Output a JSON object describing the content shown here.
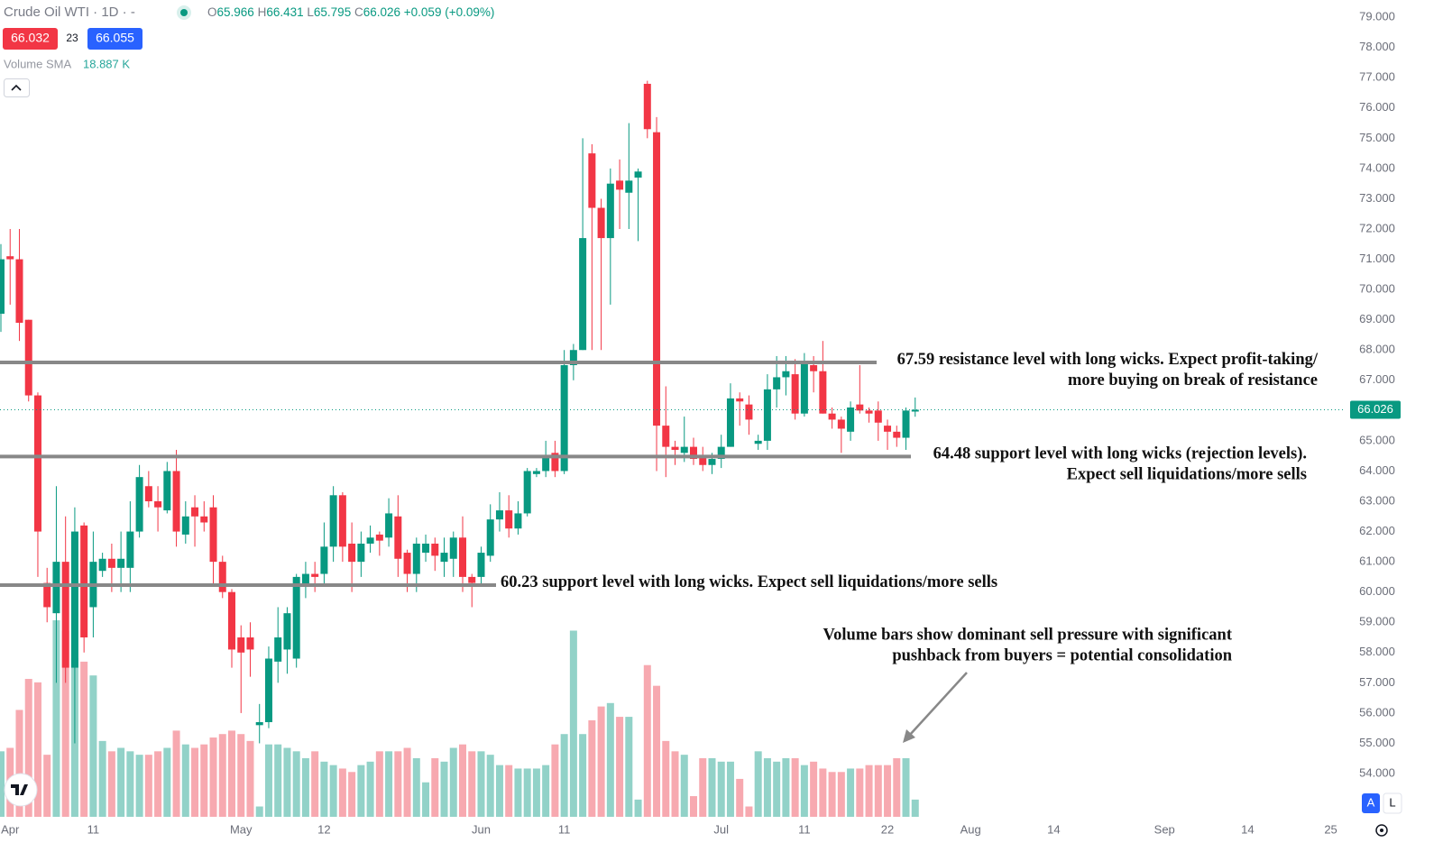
{
  "header": {
    "title": "Crude Oil WTI · 1D · -",
    "ohlc_letters": [
      "O",
      "H",
      "L",
      "C"
    ],
    "change": "+0.059 (+0.09%)",
    "bid": "66.032",
    "spread": "23",
    "ask": "66.055",
    "volume_sma_label": "Volume SMA",
    "volume_sma_value": "18.887 K",
    "buttons": [
      "A",
      "L"
    ]
  },
  "chart_data": {
    "type": "candlestick",
    "ylim": [
      52.57,
      79.57
    ],
    "yticks": [
      {
        "value": 54,
        "label": "54.000"
      },
      {
        "value": 55,
        "label": "55.000"
      },
      {
        "value": 56,
        "label": "56.000"
      },
      {
        "value": 57,
        "label": "57.000"
      },
      {
        "value": 58,
        "label": "58.000"
      },
      {
        "value": 59,
        "label": "59.000"
      },
      {
        "value": 60,
        "label": "60.000"
      },
      {
        "value": 61,
        "label": "61.000"
      },
      {
        "value": 62,
        "label": "62.000"
      },
      {
        "value": 63,
        "label": "63.000"
      },
      {
        "value": 64,
        "label": "64.000"
      },
      {
        "value": 65,
        "label": "65.000"
      },
      {
        "value": 66,
        "label": "66.000"
      },
      {
        "value": 67,
        "label": "67.000"
      },
      {
        "value": 68,
        "label": "68.000"
      },
      {
        "value": 69,
        "label": "69.000"
      },
      {
        "value": 70,
        "label": "70.000"
      },
      {
        "value": 71,
        "label": "71.000"
      },
      {
        "value": 72,
        "label": "72.000"
      },
      {
        "value": 73,
        "label": "73.000"
      },
      {
        "value": 74,
        "label": "74.000"
      },
      {
        "value": 75,
        "label": "75.000"
      },
      {
        "value": 76,
        "label": "76.000"
      },
      {
        "value": 77,
        "label": "77.000"
      },
      {
        "value": 78,
        "label": "78.000"
      },
      {
        "value": 79,
        "label": "79.000"
      }
    ],
    "xticks": [
      {
        "value": 1,
        "label": "Apr"
      },
      {
        "value": 10,
        "label": "11"
      },
      {
        "value": 26,
        "label": "May"
      },
      {
        "value": 35,
        "label": "12"
      },
      {
        "value": 52,
        "label": "Jun"
      },
      {
        "value": 61,
        "label": "11"
      },
      {
        "value": 78,
        "label": "Jul"
      },
      {
        "value": 87,
        "label": "11"
      },
      {
        "value": 96,
        "label": "22"
      },
      {
        "value": 105,
        "label": "Aug"
      },
      {
        "value": 114,
        "label": "14"
      },
      {
        "value": 126,
        "label": "Sep"
      },
      {
        "value": 135,
        "label": "14"
      },
      {
        "value": 144,
        "label": "25"
      }
    ],
    "up_color": "#089981",
    "down_color": "#f23645",
    "up_volume_color": "#92d2c8",
    "down_volume_color": "#f7a9b0",
    "candles": [
      [
        69.2,
        71.5,
        68.6,
        71.0
      ],
      [
        71.1,
        72.0,
        69.5,
        71.0
      ],
      [
        71.0,
        72.0,
        68.3,
        68.9
      ],
      [
        69.0,
        69.0,
        66.3,
        66.5
      ],
      [
        66.5,
        66.6,
        60.5,
        62.0
      ],
      [
        60.3,
        60.8,
        59.0,
        59.5
      ],
      [
        59.3,
        63.5,
        57.0,
        61.0
      ],
      [
        61.0,
        62.5,
        57.0,
        57.5
      ],
      [
        57.5,
        62.8,
        55.0,
        62.0
      ],
      [
        62.2,
        62.3,
        58.0,
        58.5
      ],
      [
        59.5,
        62.0,
        58.5,
        61.0
      ],
      [
        60.7,
        61.3,
        60.5,
        61.1
      ],
      [
        61.1,
        61.6,
        60.0,
        60.8
      ],
      [
        60.8,
        62.0,
        60.0,
        61.1
      ],
      [
        60.8,
        63.0,
        60.0,
        62.0
      ],
      [
        62.0,
        64.2,
        61.8,
        63.8
      ],
      [
        63.5,
        64.0,
        62.8,
        63.0
      ],
      [
        63.0,
        63.5,
        62.0,
        62.8
      ],
      [
        62.7,
        64.3,
        62.6,
        64.0
      ],
      [
        64.0,
        64.7,
        61.5,
        62.0
      ],
      [
        61.9,
        63.0,
        61.6,
        62.5
      ],
      [
        62.8,
        63.2,
        61.5,
        62.5
      ],
      [
        62.5,
        63.0,
        62.0,
        62.3
      ],
      [
        62.8,
        63.2,
        60.2,
        61.0
      ],
      [
        61.0,
        61.2,
        59.8,
        60.0
      ],
      [
        60.0,
        60.1,
        57.5,
        58.1
      ],
      [
        58.5,
        58.9,
        56.0,
        58.0
      ],
      [
        58.5,
        59.0,
        57.2,
        58.1
      ],
      [
        55.6,
        56.3,
        55.0,
        55.7
      ],
      [
        55.7,
        58.2,
        55.5,
        57.8
      ],
      [
        57.7,
        59.5,
        57.0,
        58.5
      ],
      [
        58.1,
        59.5,
        57.3,
        59.3
      ],
      [
        57.8,
        60.6,
        57.5,
        60.5
      ],
      [
        60.2,
        61.0,
        59.8,
        60.6
      ],
      [
        60.6,
        61.0,
        60.0,
        60.5
      ],
      [
        60.6,
        62.3,
        60.2,
        61.5
      ],
      [
        61.5,
        63.5,
        61.0,
        63.2
      ],
      [
        63.2,
        63.3,
        61.0,
        61.5
      ],
      [
        61.6,
        62.3,
        60.0,
        61.0
      ],
      [
        61.0,
        62.0,
        60.5,
        61.6
      ],
      [
        61.6,
        62.2,
        61.3,
        61.8
      ],
      [
        61.9,
        62.0,
        61.2,
        61.7
      ],
      [
        61.8,
        63.1,
        61.5,
        62.6
      ],
      [
        62.5,
        63.2,
        60.5,
        61.1
      ],
      [
        61.3,
        61.4,
        60.0,
        60.6
      ],
      [
        60.6,
        61.8,
        60.0,
        61.6
      ],
      [
        61.3,
        61.9,
        61.0,
        61.6
      ],
      [
        61.6,
        61.8,
        60.7,
        61.2
      ],
      [
        61.0,
        61.8,
        60.5,
        61.3
      ],
      [
        61.1,
        62.0,
        60.5,
        61.8
      ],
      [
        61.8,
        62.5,
        60.0,
        60.5
      ],
      [
        60.5,
        60.6,
        59.5,
        60.3
      ],
      [
        60.5,
        61.5,
        60.2,
        61.3
      ],
      [
        61.2,
        62.9,
        61.0,
        62.4
      ],
      [
        62.4,
        63.3,
        62.0,
        62.7
      ],
      [
        62.7,
        63.2,
        61.8,
        62.1
      ],
      [
        62.1,
        63.0,
        61.9,
        62.6
      ],
      [
        62.6,
        64.1,
        62.5,
        64.0
      ],
      [
        63.9,
        64.1,
        63.8,
        64.0
      ],
      [
        64.0,
        65.0,
        63.8,
        64.5
      ],
      [
        64.6,
        65.0,
        63.8,
        64.0
      ],
      [
        64.0,
        68.0,
        63.9,
        67.5
      ],
      [
        67.5,
        68.2,
        67.0,
        68.0
      ],
      [
        68.0,
        75.0,
        68.0,
        71.7
      ],
      [
        74.5,
        74.8,
        68.0,
        72.7
      ],
      [
        72.7,
        73.0,
        68.0,
        71.7
      ],
      [
        71.7,
        74.0,
        69.5,
        73.5
      ],
      [
        73.6,
        74.3,
        72.0,
        73.3
      ],
      [
        73.2,
        75.5,
        72.0,
        73.6
      ],
      [
        73.7,
        74.0,
        71.6,
        73.9
      ],
      [
        76.8,
        76.9,
        75.0,
        75.3
      ],
      [
        75.2,
        75.7,
        64.0,
        65.5
      ],
      [
        65.5,
        66.8,
        63.8,
        64.8
      ],
      [
        64.8,
        65.0,
        64.2,
        64.7
      ],
      [
        64.6,
        65.8,
        64.3,
        64.8
      ],
      [
        64.8,
        65.1,
        64.2,
        64.4
      ],
      [
        64.5,
        64.8,
        64.0,
        64.2
      ],
      [
        64.2,
        64.6,
        63.9,
        64.4
      ],
      [
        64.4,
        65.2,
        64.1,
        64.8
      ],
      [
        64.8,
        66.9,
        64.8,
        66.4
      ],
      [
        66.4,
        66.6,
        65.5,
        66.3
      ],
      [
        66.2,
        66.5,
        65.2,
        65.7
      ],
      [
        64.9,
        65.2,
        64.7,
        65.0
      ],
      [
        65.0,
        67.2,
        64.7,
        66.7
      ],
      [
        66.7,
        67.8,
        66.1,
        67.1
      ],
      [
        67.1,
        67.8,
        66.5,
        67.3
      ],
      [
        67.2,
        67.7,
        65.7,
        65.9
      ],
      [
        65.9,
        67.9,
        65.8,
        67.6
      ],
      [
        67.5,
        67.8,
        66.6,
        67.3
      ],
      [
        67.3,
        68.3,
        65.9,
        65.9
      ],
      [
        65.9,
        66.1,
        65.4,
        65.7
      ],
      [
        65.7,
        65.8,
        64.6,
        65.4
      ],
      [
        65.3,
        66.3,
        65.0,
        66.1
      ],
      [
        66.2,
        67.5,
        65.9,
        66.0
      ],
      [
        66.0,
        66.1,
        65.6,
        65.9
      ],
      [
        66.0,
        66.3,
        65.0,
        65.6
      ],
      [
        65.5,
        65.7,
        64.7,
        65.3
      ],
      [
        65.3,
        65.5,
        64.8,
        65.1
      ],
      [
        65.1,
        66.1,
        64.7,
        66.0
      ],
      [
        65.966,
        66.431,
        65.795,
        66.026
      ]
    ],
    "volume": [
      19,
      20,
      31,
      40,
      39,
      18,
      57,
      54,
      46,
      45,
      41,
      22,
      19,
      20,
      19,
      18,
      18,
      19,
      20,
      25,
      21,
      20,
      21,
      23,
      24,
      25,
      24,
      22,
      3,
      21,
      21,
      20,
      19,
      17,
      19,
      16,
      15,
      14,
      13,
      15,
      16,
      19,
      19,
      19,
      20,
      17,
      10,
      17,
      16,
      20,
      21,
      19,
      19,
      18,
      15,
      15,
      14,
      14,
      14,
      15,
      21,
      24,
      54,
      24,
      28,
      32,
      33,
      29,
      29,
      5,
      44,
      38,
      22,
      19,
      18,
      6,
      17,
      17,
      16,
      16,
      11,
      3,
      19,
      17,
      16,
      17,
      17,
      15,
      16,
      14,
      13,
      13,
      14,
      14,
      15,
      15,
      15,
      17,
      17,
      5
    ],
    "levels": [
      {
        "value": 67.59,
        "lines": [
          "67.59 resistance level with long wicks. Expect profit-taking/",
          "more buying on break of resistance"
        ]
      },
      {
        "value": 64.48,
        "lines": [
          "64.48 support level with long wicks (rejection levels).",
          "Expect sell liquidations/more sells"
        ]
      },
      {
        "value": 60.23,
        "lines": [
          "60.23 support level with long wicks. Expect sell liquidations/more sells"
        ]
      }
    ],
    "annotation": [
      "Volume bars show dominant sell pressure with significant",
      "pushback from buyers = potential consolidation"
    ]
  }
}
